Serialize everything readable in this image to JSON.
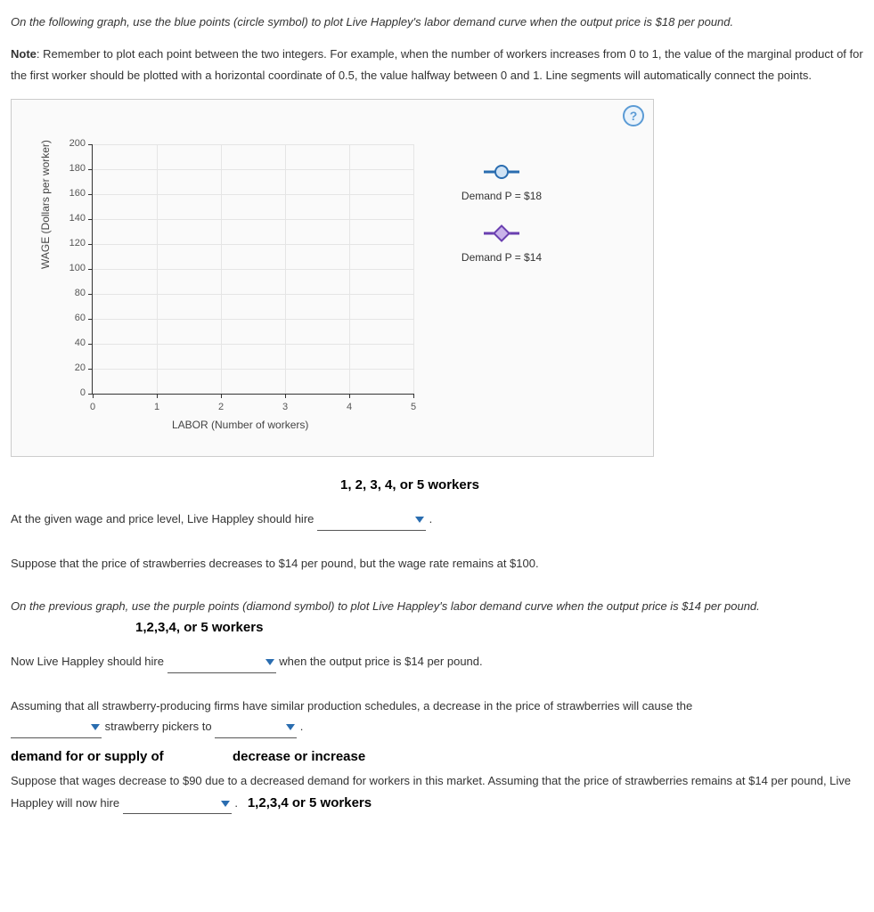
{
  "instruction1": "On the following graph, use the blue points (circle symbol) to plot Live Happley's labor demand curve when the output price is $18 per pound.",
  "note_label": "Note",
  "note_text": ": Remember to plot each point between the two integers. For example, when the number of workers increases from 0 to 1, the value of the marginal product of for the first worker should be plotted with a horizontal coordinate of 0.5, the value halfway between 0 and 1. Line segments will automatically connect the points.",
  "help_icon": "?",
  "chart": {
    "type": "line-scatter",
    "xlabel": "LABOR (Number of workers)",
    "ylabel": "WAGE (Dollars per worker)",
    "xlim": [
      0,
      5
    ],
    "xtick_step": 1,
    "ylim": [
      0,
      200
    ],
    "ytick_step": 20,
    "grid_color": "#e5e5e5",
    "axis_color": "#333333",
    "background": "#fafafa",
    "label_fontsize": 12,
    "tick_fontsize": 11,
    "legend": [
      {
        "label": "Demand P = $18",
        "marker": "circle",
        "line_color": "#2a6db0",
        "fill": "#d0e3f5"
      },
      {
        "label": "Demand P = $14",
        "marker": "diamond",
        "line_color": "#6a3fb0",
        "fill": "#c9b3ea"
      }
    ]
  },
  "q1": {
    "hint_above": "1, 2, 3, 4, or 5 workers",
    "text_before": "At the given wage and price level, Live Happley should hire",
    "text_after": "."
  },
  "suppose1": "Suppose that the price of strawberries decreases to $14 per pound, but the wage rate remains at $100.",
  "instruction2": "On the previous graph, use the purple points (diamond symbol) to plot Live Happley's labor demand curve when the output price is $14 per pound.",
  "q2": {
    "hint_above": "1,2,3,4, or 5 workers",
    "text_before": "Now Live Happley should hire",
    "text_after": "when the output price is $14 per pound."
  },
  "q3": {
    "text_before": "Assuming that all strawberry-producing firms have similar production schedules, a decrease in the price of strawberries will cause the",
    "text_mid": "strawberry pickers to",
    "text_after": ".",
    "hint1": "demand for or supply of",
    "hint2": "decrease or increase"
  },
  "q4": {
    "text_before": "Suppose that wages decrease to $90 due to a decreased demand for workers in this market. Assuming that the price of strawberries remains at $14 per pound, Live Happley will now hire",
    "text_after": ".",
    "hint": "1,2,3,4 or 5 workers"
  }
}
